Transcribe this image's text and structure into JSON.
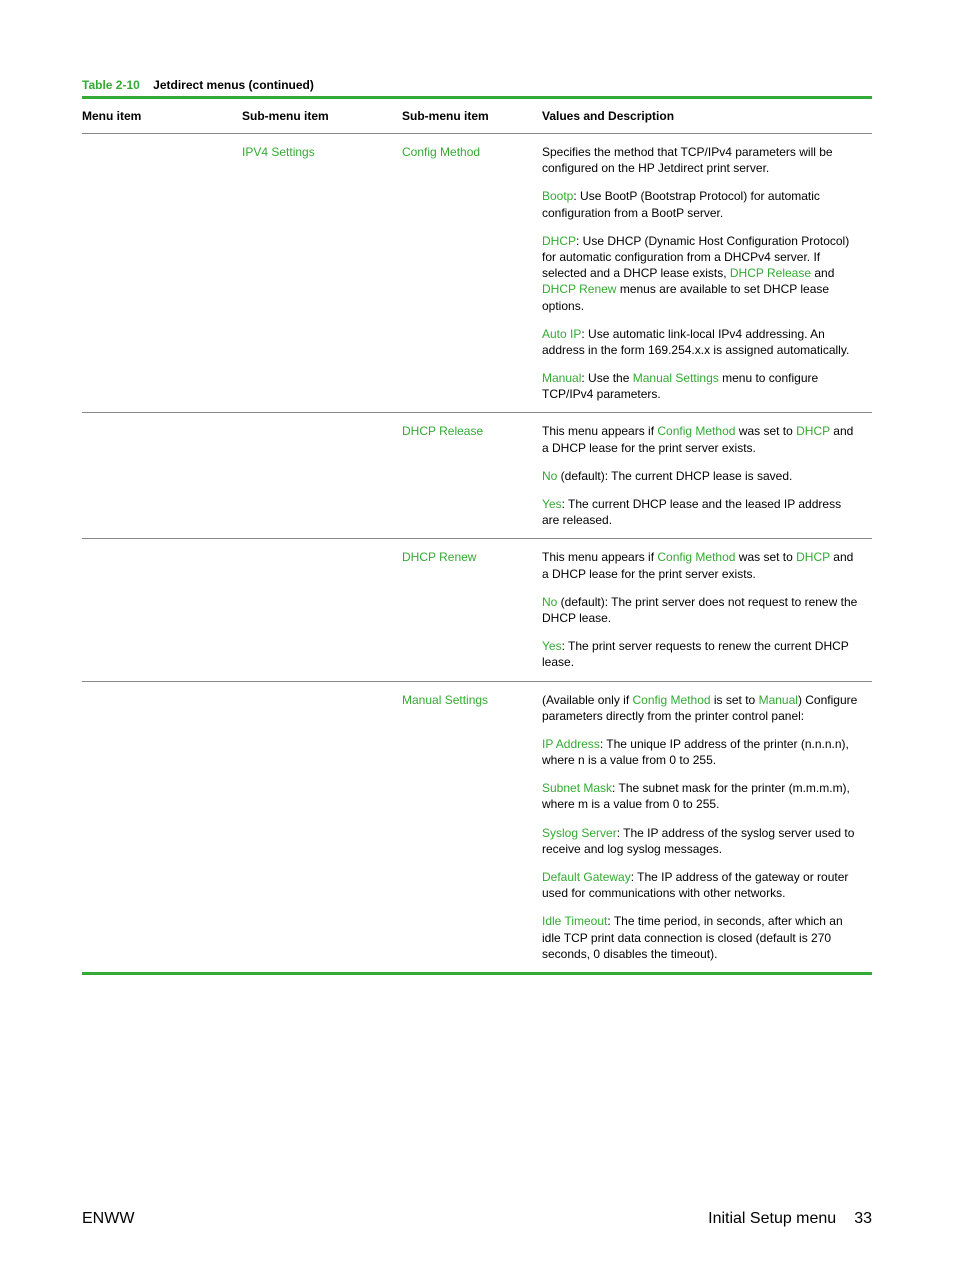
{
  "accent_color": "#33aa33",
  "table_title_num": "Table 2-10",
  "table_title_name": "Jetdirect menus (continued)",
  "headers": {
    "c1": "Menu item",
    "c2": "Sub-menu item",
    "c3": "Sub-menu item",
    "c4": "Values and Description"
  },
  "rows": [
    {
      "menu": "",
      "sub1": "IPV4 Settings",
      "sub2": "Config Method",
      "desc": [
        [
          {
            "t": "Specifies the method that TCP/IPv4 parameters will be configured on the HP Jetdirect print server."
          }
        ],
        [
          {
            "kw": "Bootp"
          },
          {
            "t": ": Use BootP (Bootstrap Protocol) for automatic configuration from a BootP server."
          }
        ],
        [
          {
            "kw": "DHCP"
          },
          {
            "t": ": Use DHCP (Dynamic Host Configuration Protocol) for automatic configuration from a DHCPv4 server. If selected and a DHCP lease exists, "
          },
          {
            "kw": "DHCP Release"
          },
          {
            "t": " and "
          },
          {
            "kw": "DHCP Renew"
          },
          {
            "t": " menus are available to set DHCP lease options."
          }
        ],
        [
          {
            "kw": "Auto IP"
          },
          {
            "t": ": Use automatic link-local IPv4 addressing. An address in the form 169.254.x.x is assigned automatically."
          }
        ],
        [
          {
            "kw": "Manual"
          },
          {
            "t": ": Use the "
          },
          {
            "kw": "Manual Settings"
          },
          {
            "t": " menu to configure TCP/IPv4 parameters."
          }
        ]
      ]
    },
    {
      "menu": "",
      "sub1": "",
      "sub2": "DHCP Release",
      "desc": [
        [
          {
            "t": "This menu appears if "
          },
          {
            "kw": "Config Method"
          },
          {
            "t": " was set to "
          },
          {
            "kw": "DHCP"
          },
          {
            "t": " and a DHCP lease for the print server exists."
          }
        ],
        [
          {
            "kw": "No"
          },
          {
            "t": " (default): The current DHCP lease is saved."
          }
        ],
        [
          {
            "kw": "Yes"
          },
          {
            "t": ": The current DHCP lease and the leased IP address are released."
          }
        ]
      ]
    },
    {
      "menu": "",
      "sub1": "",
      "sub2": "DHCP Renew",
      "desc": [
        [
          {
            "t": "This menu appears if "
          },
          {
            "kw": "Config Method"
          },
          {
            "t": " was set to "
          },
          {
            "kw": "DHCP"
          },
          {
            "t": " and a DHCP lease for the print server exists."
          }
        ],
        [
          {
            "kw": "No"
          },
          {
            "t": " (default): The print server does not request to renew the DHCP lease."
          }
        ],
        [
          {
            "kw": "Yes"
          },
          {
            "t": ": The print server requests to renew the current DHCP lease."
          }
        ]
      ]
    },
    {
      "menu": "",
      "sub1": "",
      "sub2": "Manual Settings",
      "desc": [
        [
          {
            "t": "(Available only if "
          },
          {
            "kw": "Config Method"
          },
          {
            "t": " is set to "
          },
          {
            "kw": "Manual"
          },
          {
            "t": ") Configure parameters directly from the printer control panel:"
          }
        ],
        [
          {
            "kw": "IP Address"
          },
          {
            "t": ": The unique IP address of the printer (n.n.n.n), where n is a value from 0 to 255."
          }
        ],
        [
          {
            "kw": "Subnet Mask"
          },
          {
            "t": ": The subnet mask for the printer (m.m.m.m), where m is a value from 0 to 255."
          }
        ],
        [
          {
            "kw": "Syslog Server"
          },
          {
            "t": ": The IP address of the syslog server used to receive and log syslog messages."
          }
        ],
        [
          {
            "kw": "Default Gateway"
          },
          {
            "t": ": The IP address of the gateway or router used for communications with other networks."
          }
        ],
        [
          {
            "kw": "Idle Timeout"
          },
          {
            "t": ": The time period, in seconds, after which an idle TCP print data connection is closed (default is 270 seconds, 0 disables the timeout)."
          }
        ]
      ]
    }
  ],
  "footer": {
    "left": "ENWW",
    "section": "Initial Setup menu",
    "page": "33"
  }
}
